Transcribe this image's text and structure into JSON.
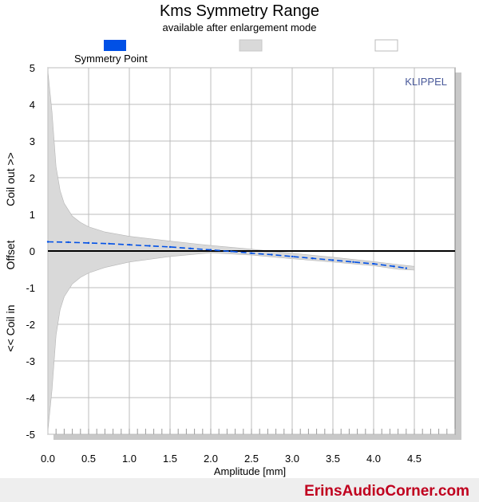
{
  "chart_data": {
    "type": "area",
    "title": "Kms Symmetry Range",
    "subtitle": "available after enlargement mode",
    "xlabel": "Amplitude [mm]",
    "ylabel_parts": [
      "<< Coil in",
      "Offset",
      "Coil out >>"
    ],
    "xlim": [
      0,
      5
    ],
    "ylim": [
      -5,
      5
    ],
    "x_ticks": [
      "0.0",
      "0.5",
      "1.0",
      "1.5",
      "2.0",
      "2.5",
      "3.0",
      "3.5",
      "4.0",
      "4.5"
    ],
    "y_ticks": [
      "-5",
      "-4",
      "-3",
      "-2",
      "-1",
      "0",
      "1",
      "2",
      "3",
      "4",
      "5"
    ],
    "grid": true,
    "brand_label": "KLIPPEL",
    "legend": [
      {
        "name": "Symmetry Point",
        "color": "#0050e6"
      },
      {
        "name": "",
        "color": "#d9d9d9"
      },
      {
        "name": "",
        "color": "#ffffff"
      }
    ],
    "series": [
      {
        "name": "Symmetry Point",
        "style": "dashed",
        "color": "#0050e6",
        "x": [
          0.0,
          0.25,
          0.5,
          0.75,
          1.0,
          1.25,
          1.5,
          1.75,
          2.0,
          2.25,
          2.5,
          2.75,
          3.0,
          3.25,
          3.5,
          3.75,
          4.0,
          4.25,
          4.4
        ],
        "y": [
          0.25,
          0.24,
          0.22,
          0.2,
          0.17,
          0.14,
          0.11,
          0.07,
          0.03,
          -0.01,
          -0.06,
          -0.1,
          -0.15,
          -0.2,
          -0.25,
          -0.3,
          -0.35,
          -0.42,
          -0.47
        ]
      }
    ],
    "range_band": {
      "color": "#d9d9d9",
      "x": [
        0.0,
        0.05,
        0.1,
        0.15,
        0.2,
        0.3,
        0.4,
        0.5,
        0.7,
        1.0,
        1.5,
        2.0,
        2.5,
        3.0,
        3.5,
        4.0,
        4.3,
        4.5
      ],
      "upper": [
        4.9,
        3.8,
        2.3,
        1.65,
        1.3,
        0.95,
        0.78,
        0.66,
        0.52,
        0.4,
        0.27,
        0.15,
        0.05,
        -0.06,
        -0.17,
        -0.29,
        -0.37,
        -0.42
      ],
      "lower": [
        -4.9,
        -3.8,
        -2.3,
        -1.6,
        -1.25,
        -0.9,
        -0.72,
        -0.6,
        -0.45,
        -0.3,
        -0.15,
        -0.05,
        -0.11,
        -0.21,
        -0.3,
        -0.4,
        -0.5,
        -0.52
      ]
    }
  },
  "footer": {
    "watermark": "ErinsAudioCorner.com"
  }
}
